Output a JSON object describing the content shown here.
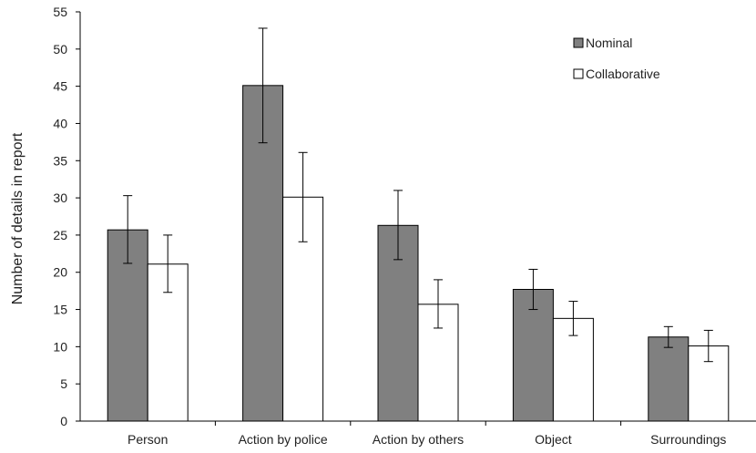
{
  "chart_data": {
    "type": "bar",
    "title": "",
    "xlabel": "",
    "ylabel": "Number of details in report",
    "ylim": [
      0,
      55
    ],
    "yticks": [
      0,
      5,
      10,
      15,
      20,
      25,
      30,
      35,
      40,
      45,
      50,
      55
    ],
    "categories": [
      "Person",
      "Action by police",
      "Action by others",
      "Object",
      "Surroundings"
    ],
    "series": [
      {
        "name": "Nominal",
        "color": "#808080",
        "values": [
          25.7,
          45.1,
          26.3,
          17.7,
          11.3
        ],
        "error_low": [
          21.2,
          37.4,
          21.7,
          15.0,
          9.9
        ],
        "error_high": [
          30.3,
          52.8,
          31.0,
          20.4,
          12.7
        ]
      },
      {
        "name": "Collaborative",
        "color": "#ffffff",
        "values": [
          21.1,
          30.1,
          15.7,
          13.8,
          10.1
        ],
        "error_low": [
          17.3,
          24.1,
          12.5,
          11.5,
          8.0
        ],
        "error_high": [
          25.0,
          36.1,
          19.0,
          16.1,
          12.2
        ]
      }
    ],
    "grid": false,
    "legend_position": "top-right"
  }
}
